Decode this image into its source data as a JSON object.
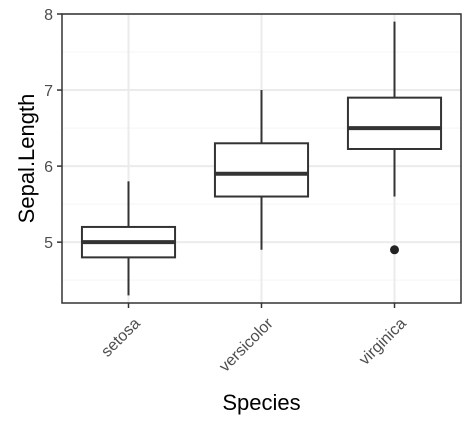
{
  "chart_data": {
    "type": "box",
    "title": "",
    "xlabel": "Species",
    "ylabel": "Sepal.Length",
    "categories": [
      "setosa",
      "versicolor",
      "virginica"
    ],
    "ylim": [
      4.2,
      8.0
    ],
    "y_ticks": [
      5,
      6,
      7,
      8
    ],
    "grid": true,
    "legend": "none",
    "boxes": [
      {
        "category": "setosa",
        "whisker_low": 4.3,
        "q1": 4.8,
        "median": 5.0,
        "q3": 5.2,
        "whisker_high": 5.8,
        "outliers": []
      },
      {
        "category": "versicolor",
        "whisker_low": 4.9,
        "q1": 5.6,
        "median": 5.9,
        "q3": 6.3,
        "whisker_high": 7.0,
        "outliers": []
      },
      {
        "category": "virginica",
        "whisker_low": 5.6,
        "q1": 6.225,
        "median": 6.5,
        "q3": 6.9,
        "whisker_high": 7.9,
        "outliers": [
          4.9
        ]
      }
    ],
    "colors": {
      "box_stroke": "#333333",
      "box_fill": "#ffffff",
      "grid_major": "#ebebeb",
      "grid_minor": "#f5f5f5",
      "axis_frame": "#333333",
      "tick_text": "#4d4d4d",
      "outlier": "#222222"
    }
  }
}
